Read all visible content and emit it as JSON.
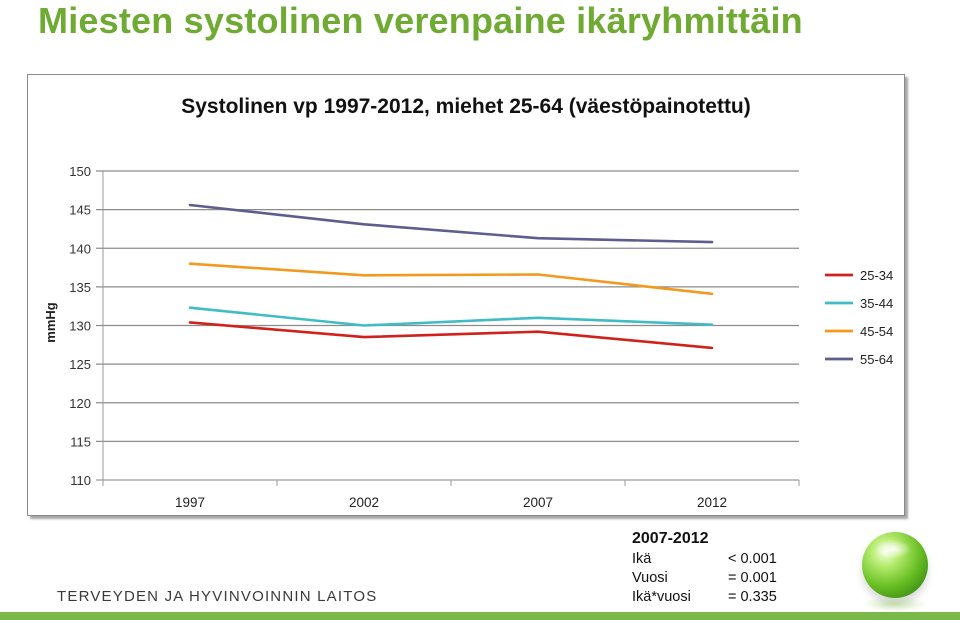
{
  "slide": {
    "title": "Miesten systolinen verenpaine ikäryhmittäin",
    "institute": "TERVEYDEN JA HYVINVOINNIN LAITOS"
  },
  "chart_data": {
    "type": "line",
    "title": "Systolinen vp 1997-2012, miehet 25-64 (väestöpainotettu)",
    "xlabel": "",
    "ylabel": "mmHg",
    "x": [
      "1997",
      "2002",
      "2007",
      "2012"
    ],
    "ylim": [
      110,
      150
    ],
    "yticks": [
      110,
      115,
      120,
      125,
      130,
      135,
      140,
      145,
      150
    ],
    "grid": true,
    "legend_position": "right",
    "series": [
      {
        "name": "25-34",
        "color": "#d0221c",
        "values": [
          130.4,
          128.5,
          129.2,
          127.1
        ]
      },
      {
        "name": "35-44",
        "color": "#3fbcc4",
        "values": [
          132.3,
          130.0,
          131.0,
          130.1
        ]
      },
      {
        "name": "45-54",
        "color": "#f29a1f",
        "values": [
          138.0,
          136.5,
          136.6,
          134.1
        ]
      },
      {
        "name": "55-64",
        "color": "#5d5d8f",
        "values": [
          145.6,
          143.1,
          141.3,
          140.8
        ]
      }
    ]
  },
  "stats": {
    "heading": "2007-2012",
    "rows": [
      {
        "label": "Ikä",
        "value": "< 0.001"
      },
      {
        "label": "Vuosi",
        "value": "= 0.001"
      },
      {
        "label": "Ikä*vuosi",
        "value": "= 0.335"
      }
    ]
  }
}
